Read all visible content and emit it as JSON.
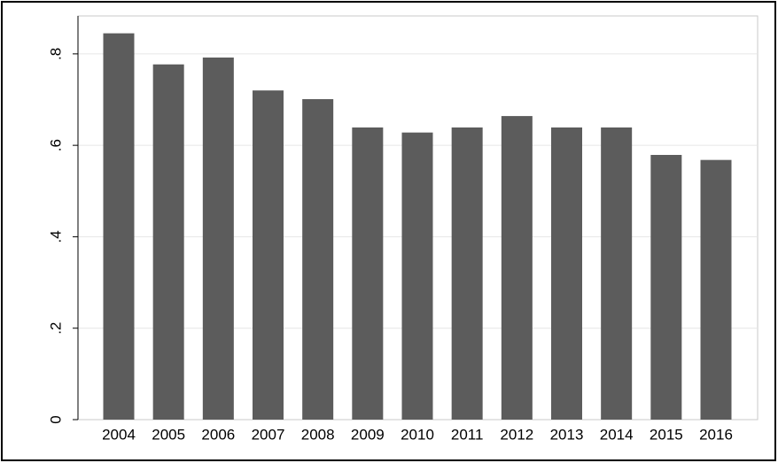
{
  "chart_data": {
    "type": "bar",
    "categories": [
      "2004",
      "2005",
      "2006",
      "2007",
      "2008",
      "2009",
      "2010",
      "2011",
      "2012",
      "2013",
      "2014",
      "2015",
      "2016"
    ],
    "values": [
      0.845,
      0.777,
      0.792,
      0.72,
      0.701,
      0.639,
      0.628,
      0.639,
      0.664,
      0.639,
      0.639,
      0.579,
      0.568
    ],
    "color": "#5c5c5c",
    "ylim": [
      0,
      0.883
    ],
    "yticks": [
      0,
      {
        "value": 0.2,
        "label": ".2"
      },
      {
        "value": 0.4,
        "label": ".4"
      },
      {
        "value": 0.6,
        "label": ".6"
      },
      {
        "value": 0.8,
        "label": ".8"
      }
    ],
    "grid": true
  }
}
